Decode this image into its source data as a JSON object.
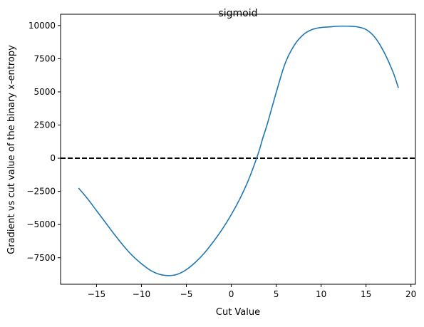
{
  "chart_data": {
    "type": "line",
    "title": "sigmoid",
    "xlabel": "Cut Value",
    "ylabel": "Gradient vs cut value of the binary x-entropy",
    "xlim": [
      -19,
      20.5
    ],
    "ylim": [
      -9500,
      10850
    ],
    "xticks": [
      -15,
      -10,
      -5,
      0,
      5,
      10,
      15,
      20
    ],
    "xtick_labels": [
      "−15",
      "−10",
      "−5",
      "0",
      "5",
      "10",
      "15",
      "20"
    ],
    "yticks": [
      -7500,
      -5000,
      -2500,
      0,
      2500,
      5000,
      7500,
      10000
    ],
    "ytick_labels": [
      "−7500",
      "−5000",
      "−2500",
      "0",
      "2500",
      "5000",
      "7500",
      "10000"
    ],
    "grid": false,
    "series": [
      {
        "color": "#1f77b4",
        "x": [
          -17.0,
          -16.0,
          -15.0,
          -14.0,
          -13.0,
          -12.0,
          -11.0,
          -10.0,
          -9.0,
          -8.0,
          -7.0,
          -6.0,
          -5.0,
          -4.0,
          -3.0,
          -2.0,
          -1.0,
          0.0,
          1.0,
          2.0,
          3.0,
          3.5,
          4.0,
          5.0,
          6.0,
          7.0,
          8.0,
          9.0,
          10.0,
          11.0,
          12.0,
          13.0,
          14.0,
          15.0,
          16.0,
          17.0,
          18.0,
          18.6
        ],
        "y": [
          -2250,
          -3050,
          -3950,
          -4850,
          -5750,
          -6600,
          -7350,
          -7950,
          -8450,
          -8750,
          -8850,
          -8750,
          -8400,
          -7850,
          -7150,
          -6300,
          -5350,
          -4250,
          -3000,
          -1500,
          350,
          1500,
          2550,
          4950,
          7150,
          8500,
          9300,
          9700,
          9850,
          9900,
          9950,
          9950,
          9900,
          9700,
          9100,
          8000,
          6500,
          5300
        ]
      }
    ],
    "reference_lines": [
      {
        "axis": "y",
        "value": 0,
        "style": "dashed",
        "color": "#000000"
      }
    ]
  }
}
